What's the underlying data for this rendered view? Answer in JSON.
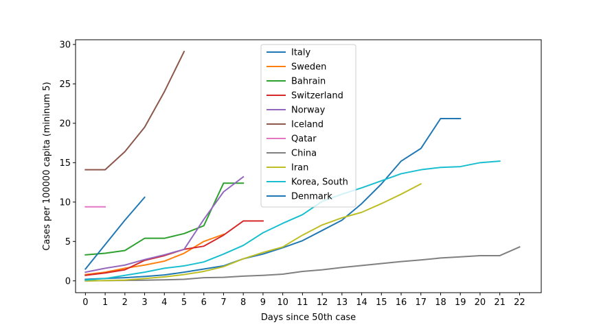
{
  "chart_data": {
    "type": "line",
    "title": "",
    "xlabel": "Days since 50th case",
    "ylabel": "Cases per 100000 capita (mininum 5)",
    "xlim": [
      -0.5,
      23.1
    ],
    "ylim": [
      -1.5,
      30.6
    ],
    "xticks": [
      0,
      1,
      2,
      3,
      4,
      5,
      6,
      7,
      8,
      9,
      10,
      11,
      12,
      13,
      14,
      15,
      16,
      17,
      18,
      19,
      20,
      21,
      22
    ],
    "yticks": [
      0,
      5,
      10,
      15,
      20,
      25,
      30
    ],
    "grid": false,
    "legend_position": "top-center",
    "series": [
      {
        "name": "Italy",
        "color": "#1f77b4",
        "x": [
          0,
          1,
          2,
          3,
          4,
          5,
          6,
          7,
          8,
          9,
          10,
          11,
          12,
          13,
          14,
          15,
          16,
          17,
          18,
          19
        ],
        "values": [
          0.2,
          0.3,
          0.4,
          0.55,
          0.75,
          1.1,
          1.5,
          1.9,
          2.8,
          3.4,
          4.2,
          5.1,
          6.4,
          7.7,
          9.8,
          12.3,
          15.2,
          16.8,
          20.6,
          20.6
        ]
      },
      {
        "name": "Sweden",
        "color": "#ff7f0e",
        "x": [
          0,
          1,
          2,
          3,
          4,
          5,
          6,
          7
        ],
        "values": [
          0.8,
          1.1,
          1.6,
          2.0,
          2.5,
          3.5,
          5.0,
          5.9
        ]
      },
      {
        "name": "Bahrain",
        "color": "#2ca02c",
        "x": [
          0,
          1,
          2,
          3,
          4,
          5,
          6,
          7,
          8
        ],
        "values": [
          3.3,
          3.5,
          3.85,
          5.4,
          5.4,
          6.0,
          7.0,
          12.4,
          12.4
        ]
      },
      {
        "name": "Switzerland",
        "color": "#d62728",
        "x": [
          0,
          1,
          2,
          3,
          4,
          5,
          6,
          7,
          8,
          9
        ],
        "values": [
          0.7,
          1.0,
          1.4,
          2.6,
          3.2,
          4.0,
          4.4,
          5.8,
          7.6,
          7.6
        ]
      },
      {
        "name": "Norway",
        "color": "#9467bd",
        "x": [
          0,
          1,
          2,
          3,
          4,
          5,
          6,
          7,
          8
        ],
        "values": [
          1.1,
          1.6,
          2.0,
          2.7,
          3.3,
          4.0,
          7.8,
          11.3,
          13.2
        ]
      },
      {
        "name": "Iceland",
        "color": "#8c564b",
        "x": [
          0,
          1,
          2,
          3,
          4,
          5
        ],
        "values": [
          14.1,
          14.1,
          16.4,
          19.5,
          24.0,
          29.1
        ]
      },
      {
        "name": "Qatar",
        "color": "#e377c2",
        "x": [
          0,
          1
        ],
        "values": [
          9.4,
          9.4
        ]
      },
      {
        "name": "China",
        "color": "#7f7f7f",
        "x": [
          0,
          1,
          2,
          3,
          4,
          5,
          6,
          7,
          8,
          9,
          10,
          11,
          12,
          13,
          14,
          15,
          16,
          17,
          18,
          19,
          20,
          21,
          22
        ],
        "values": [
          0.0,
          0.03,
          0.06,
          0.09,
          0.13,
          0.2,
          0.4,
          0.45,
          0.6,
          0.7,
          0.85,
          1.2,
          1.4,
          1.7,
          1.95,
          2.2,
          2.45,
          2.65,
          2.9,
          3.05,
          3.2,
          3.2,
          4.3
        ]
      },
      {
        "name": "Iran",
        "color": "#bcbd22",
        "x": [
          0,
          1,
          2,
          3,
          4,
          5,
          6,
          7,
          8,
          9,
          10,
          11,
          12,
          13,
          14,
          15,
          16,
          17
        ],
        "values": [
          0.0,
          0.03,
          0.1,
          0.3,
          0.5,
          0.8,
          1.2,
          1.8,
          2.8,
          3.6,
          4.3,
          5.8,
          7.1,
          8.0,
          8.7,
          9.8,
          11.0,
          12.3
        ]
      },
      {
        "name": "Korea, South",
        "color": "#17becf",
        "x": [
          0,
          1,
          2,
          3,
          4,
          5,
          6,
          7,
          8,
          9,
          10,
          11,
          12,
          13,
          14,
          15,
          16,
          17,
          18,
          19,
          20,
          21
        ],
        "values": [
          0.1,
          0.3,
          0.7,
          1.1,
          1.6,
          1.9,
          2.4,
          3.4,
          4.5,
          6.1,
          7.3,
          8.4,
          10.1,
          11.0,
          11.8,
          12.7,
          13.6,
          14.1,
          14.4,
          14.5,
          15.0,
          15.2
        ]
      },
      {
        "name": "Denmark",
        "color": "#1f77b4",
        "x": [
          0,
          1,
          2,
          3
        ],
        "values": [
          1.5,
          4.6,
          7.7,
          10.6
        ]
      }
    ]
  }
}
